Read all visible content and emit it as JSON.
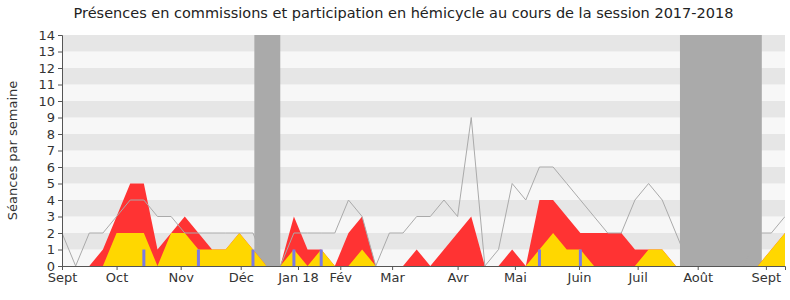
{
  "chart_data": {
    "type": "area",
    "title": "Présences en commissions et participation en hémicycle au cours de la session 2017-2018",
    "y_label": "Séances par semaine",
    "x": [
      0,
      1,
      2,
      3,
      4,
      5,
      6,
      7,
      8,
      9,
      10,
      11,
      12,
      13,
      14,
      15,
      16,
      17,
      18,
      19,
      20,
      21,
      22,
      23,
      24,
      25,
      26,
      27,
      28,
      29,
      30,
      31,
      32,
      33,
      34,
      35,
      36,
      37,
      38,
      39,
      40,
      41,
      42,
      43,
      44,
      45,
      46,
      47,
      48,
      49,
      50,
      51,
      52,
      53
    ],
    "xlim": [
      0,
      53
    ],
    "xticks": [
      {
        "value": 0,
        "label": "Sept"
      },
      {
        "value": 4,
        "label": "Oct"
      },
      {
        "value": 8.7,
        "label": "Nov"
      },
      {
        "value": 13.1,
        "label": "Déc"
      },
      {
        "value": 17.3,
        "label": "Jan 18"
      },
      {
        "value": 20.4,
        "label": "Fév"
      },
      {
        "value": 24.2,
        "label": "Mar"
      },
      {
        "value": 29,
        "label": "Avr"
      },
      {
        "value": 33.2,
        "label": "Mai"
      },
      {
        "value": 37.9,
        "label": "Juin"
      },
      {
        "value": 42.2,
        "label": "Juil"
      },
      {
        "value": 46.6,
        "label": "Août"
      },
      {
        "value": 51.6,
        "label": "Sept"
      }
    ],
    "ylim": [
      0,
      14
    ],
    "yticks": [
      0,
      1,
      2,
      3,
      4,
      5,
      6,
      7,
      8,
      9,
      10,
      11,
      12,
      13,
      14
    ],
    "grid": true,
    "stacked": false,
    "holidays": [
      [
        14.1,
        16
      ],
      [
        45.3,
        51.3
      ]
    ],
    "holiday_color": "#aaaaaa",
    "series": [
      {
        "type": "area",
        "color": "#ff3333",
        "values": [
          0,
          0,
          0,
          1,
          3,
          5,
          5,
          1,
          2,
          3,
          2,
          1,
          1,
          2,
          1,
          0,
          0,
          3,
          1,
          1,
          0,
          2,
          3,
          0,
          0,
          0,
          1,
          0,
          1,
          2,
          3,
          0,
          0,
          1,
          0,
          4,
          4,
          3,
          2,
          2,
          2,
          2,
          1,
          1,
          1,
          0,
          0,
          0,
          0,
          0,
          0,
          0,
          1,
          2
        ]
      },
      {
        "type": "area",
        "color": "#ffd700",
        "values": [
          0,
          0,
          0,
          0,
          2,
          2,
          2,
          0,
          2,
          2,
          1,
          1,
          1,
          2,
          1,
          0,
          0,
          1,
          0,
          1,
          0,
          0,
          1,
          0,
          0,
          0,
          0,
          0,
          0,
          0,
          0,
          0,
          0,
          0,
          0,
          1,
          2,
          1,
          1,
          0,
          0,
          0,
          0,
          1,
          1,
          0,
          0,
          0,
          0,
          0,
          0,
          0,
          1,
          2
        ]
      },
      {
        "type": "line",
        "color": "#aaaaaa",
        "values": [
          2,
          0,
          2,
          2,
          3,
          4,
          4,
          3,
          3,
          2,
          2,
          2,
          2,
          2,
          2,
          0,
          0,
          2,
          2,
          2,
          2,
          4,
          3,
          0,
          2,
          2,
          3,
          3,
          4,
          3,
          9,
          0,
          1,
          5,
          4,
          6,
          6,
          5,
          4,
          3,
          2,
          2,
          4,
          5,
          4,
          2,
          0,
          0,
          0,
          0,
          0,
          2,
          2,
          3
        ]
      },
      {
        "type": "bar",
        "color": "#7a7ae6",
        "x": [
          6,
          10,
          14,
          17,
          19,
          35,
          38
        ],
        "values": [
          1,
          1,
          1,
          1,
          1,
          1,
          1
        ]
      }
    ]
  }
}
